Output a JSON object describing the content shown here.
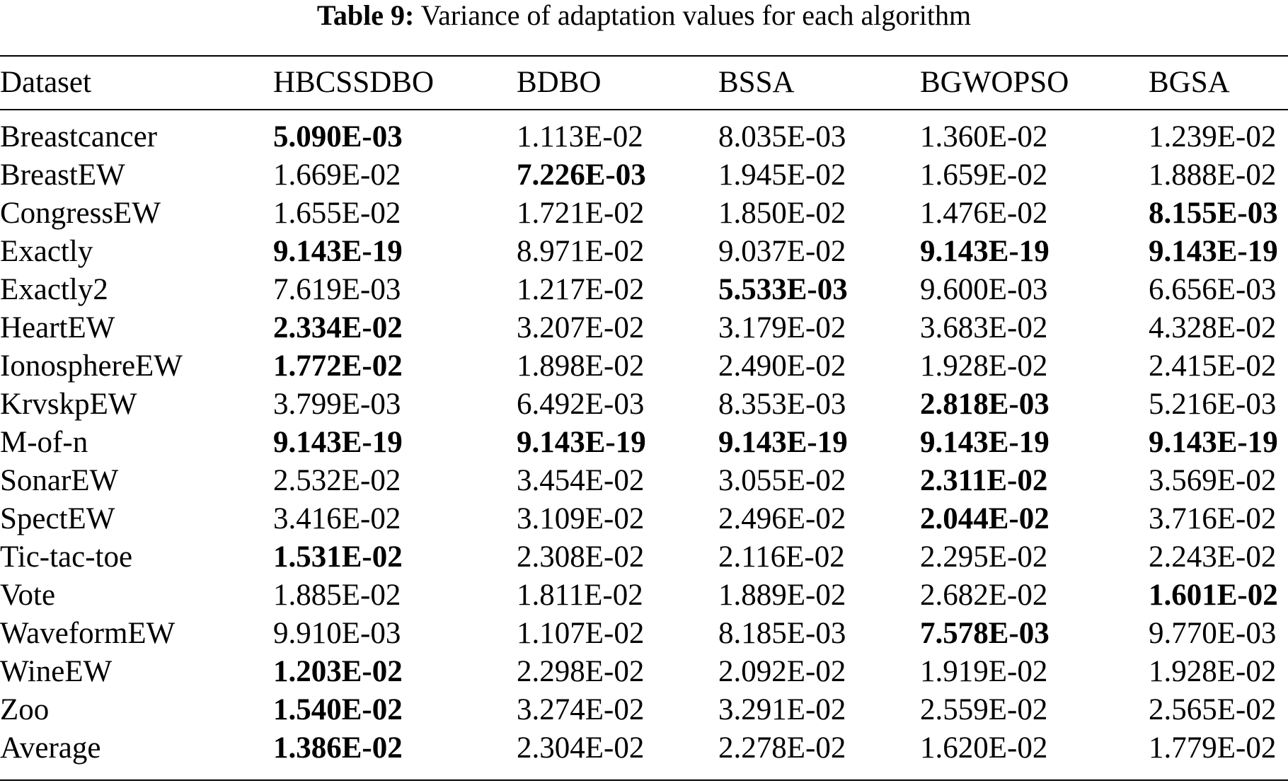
{
  "caption": {
    "label": "Table 9:",
    "text": "Variance of adaptation values for each algorithm"
  },
  "table": {
    "headers": [
      "Dataset",
      "HBCSSDBO",
      "BDBO",
      "BSSA",
      "BGWOPSO",
      "BGSA"
    ],
    "rows": [
      {
        "dataset": "Breastcancer",
        "values": [
          "5.090E-03",
          "1.113E-02",
          "8.035E-03",
          "1.360E-02",
          "1.239E-02"
        ],
        "bold": [
          true,
          false,
          false,
          false,
          false
        ]
      },
      {
        "dataset": "BreastEW",
        "values": [
          "1.669E-02",
          "7.226E-03",
          "1.945E-02",
          "1.659E-02",
          "1.888E-02"
        ],
        "bold": [
          false,
          true,
          false,
          false,
          false
        ]
      },
      {
        "dataset": "CongressEW",
        "values": [
          "1.655E-02",
          "1.721E-02",
          "1.850E-02",
          "1.476E-02",
          "8.155E-03"
        ],
        "bold": [
          false,
          false,
          false,
          false,
          true
        ]
      },
      {
        "dataset": "Exactly",
        "values": [
          "9.143E-19",
          "8.971E-02",
          "9.037E-02",
          "9.143E-19",
          "9.143E-19"
        ],
        "bold": [
          true,
          false,
          false,
          true,
          true
        ]
      },
      {
        "dataset": "Exactly2",
        "values": [
          "7.619E-03",
          "1.217E-02",
          "5.533E-03",
          "9.600E-03",
          "6.656E-03"
        ],
        "bold": [
          false,
          false,
          true,
          false,
          false
        ]
      },
      {
        "dataset": "HeartEW",
        "values": [
          "2.334E-02",
          "3.207E-02",
          "3.179E-02",
          "3.683E-02",
          "4.328E-02"
        ],
        "bold": [
          true,
          false,
          false,
          false,
          false
        ]
      },
      {
        "dataset": "IonosphereEW",
        "values": [
          "1.772E-02",
          "1.898E-02",
          "2.490E-02",
          "1.928E-02",
          "2.415E-02"
        ],
        "bold": [
          true,
          false,
          false,
          false,
          false
        ]
      },
      {
        "dataset": "KrvskpEW",
        "values": [
          "3.799E-03",
          "6.492E-03",
          "8.353E-03",
          "2.818E-03",
          "5.216E-03"
        ],
        "bold": [
          false,
          false,
          false,
          true,
          false
        ]
      },
      {
        "dataset": "M-of-n",
        "values": [
          "9.143E-19",
          "9.143E-19",
          "9.143E-19",
          "9.143E-19",
          "9.143E-19"
        ],
        "bold": [
          true,
          true,
          true,
          true,
          true
        ]
      },
      {
        "dataset": "SonarEW",
        "values": [
          "2.532E-02",
          "3.454E-02",
          "3.055E-02",
          "2.311E-02",
          "3.569E-02"
        ],
        "bold": [
          false,
          false,
          false,
          true,
          false
        ]
      },
      {
        "dataset": "SpectEW",
        "values": [
          "3.416E-02",
          "3.109E-02",
          "2.496E-02",
          "2.044E-02",
          "3.716E-02"
        ],
        "bold": [
          false,
          false,
          false,
          true,
          false
        ]
      },
      {
        "dataset": "Tic-tac-toe",
        "values": [
          "1.531E-02",
          "2.308E-02",
          "2.116E-02",
          "2.295E-02",
          "2.243E-02"
        ],
        "bold": [
          true,
          false,
          false,
          false,
          false
        ]
      },
      {
        "dataset": "Vote",
        "values": [
          "1.885E-02",
          "1.811E-02",
          "1.889E-02",
          "2.682E-02",
          "1.601E-02"
        ],
        "bold": [
          false,
          false,
          false,
          false,
          true
        ]
      },
      {
        "dataset": "WaveformEW",
        "values": [
          "9.910E-03",
          "1.107E-02",
          "8.185E-03",
          "7.578E-03",
          "9.770E-03"
        ],
        "bold": [
          false,
          false,
          false,
          true,
          false
        ]
      },
      {
        "dataset": "WineEW",
        "values": [
          "1.203E-02",
          "2.298E-02",
          "2.092E-02",
          "1.919E-02",
          "1.928E-02"
        ],
        "bold": [
          true,
          false,
          false,
          false,
          false
        ]
      },
      {
        "dataset": "Zoo",
        "values": [
          "1.540E-02",
          "3.274E-02",
          "3.291E-02",
          "2.559E-02",
          "2.565E-02"
        ],
        "bold": [
          true,
          false,
          false,
          false,
          false
        ]
      },
      {
        "dataset": "Average",
        "values": [
          "1.386E-02",
          "2.304E-02",
          "2.278E-02",
          "1.620E-02",
          "1.779E-02"
        ],
        "bold": [
          true,
          false,
          false,
          false,
          false
        ]
      }
    ]
  }
}
